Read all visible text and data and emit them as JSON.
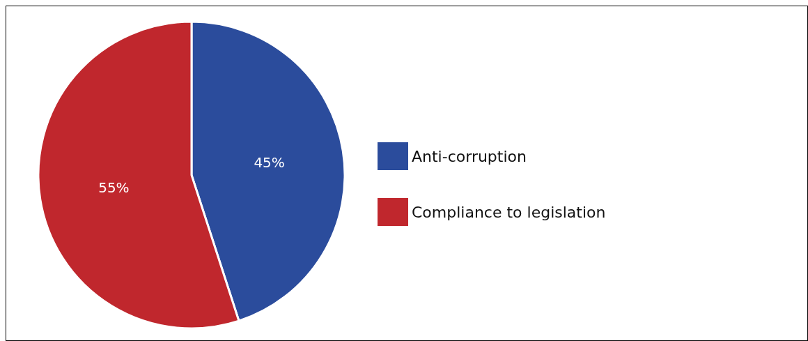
{
  "chart_data": {
    "type": "pie",
    "categories": [
      "Anti-corruption",
      "Compliance to legislation"
    ],
    "values": [
      45,
      55
    ],
    "colors": [
      "#2b4c9c",
      "#c0272d"
    ],
    "value_labels": [
      "45%",
      "55%"
    ],
    "legend": "right"
  }
}
